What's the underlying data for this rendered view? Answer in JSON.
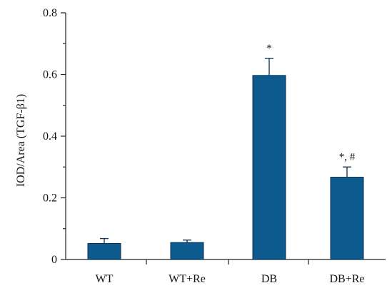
{
  "chart_data": {
    "type": "bar",
    "title": "",
    "xlabel": "",
    "ylabel": "IOD/Area (TGF-β1)",
    "ylim": [
      0,
      0.8
    ],
    "yticks": [
      0,
      0.2,
      0.4,
      0.6,
      0.8
    ],
    "ytick_labels": [
      "0",
      "0.2",
      "0.4",
      "0.6",
      "0.8"
    ],
    "minor_yticks": true,
    "grid": false,
    "legend": "none",
    "categories": [
      "WT",
      "WT+Re",
      "DB",
      "DB+Re"
    ],
    "values": [
      0.052,
      0.055,
      0.597,
      0.267
    ],
    "errors": [
      0.016,
      0.008,
      0.055,
      0.033
    ],
    "annotations": [
      "",
      "",
      "*",
      "*, #"
    ],
    "bar_color": "#0d5a8f",
    "bar_edge_color": "#0b2f55"
  }
}
